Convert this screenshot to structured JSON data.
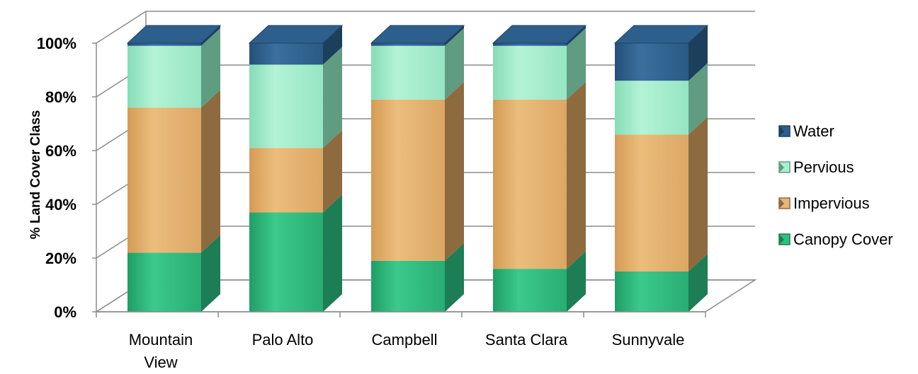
{
  "chart_data": {
    "type": "bar",
    "stacked": true,
    "percent": true,
    "ylabel": "% Land Cover Class",
    "ylim": [
      0,
      100
    ],
    "yticks": [
      "0%",
      "20%",
      "40%",
      "60%",
      "80%",
      "100%"
    ],
    "categories": [
      [
        "Mountain",
        "View"
      ],
      [
        "Palo Alto"
      ],
      [
        "Campbell"
      ],
      [
        "Santa Clara"
      ],
      [
        "Sunnyvale"
      ]
    ],
    "series": [
      {
        "name": "Canopy Cover",
        "values": [
          22,
          37,
          19,
          16,
          15
        ],
        "color": "#2db57a"
      },
      {
        "name": "Impervious",
        "values": [
          54,
          24,
          60,
          63,
          51
        ],
        "color": "#dfaa66"
      },
      {
        "name": "Pervious",
        "values": [
          23,
          31,
          20,
          20,
          20
        ],
        "color": "#9be8c6"
      },
      {
        "name": "Water",
        "values": [
          1,
          8,
          1,
          1,
          14
        ],
        "color": "#2d5d87"
      }
    ],
    "legend_position": "right",
    "grid": true
  }
}
